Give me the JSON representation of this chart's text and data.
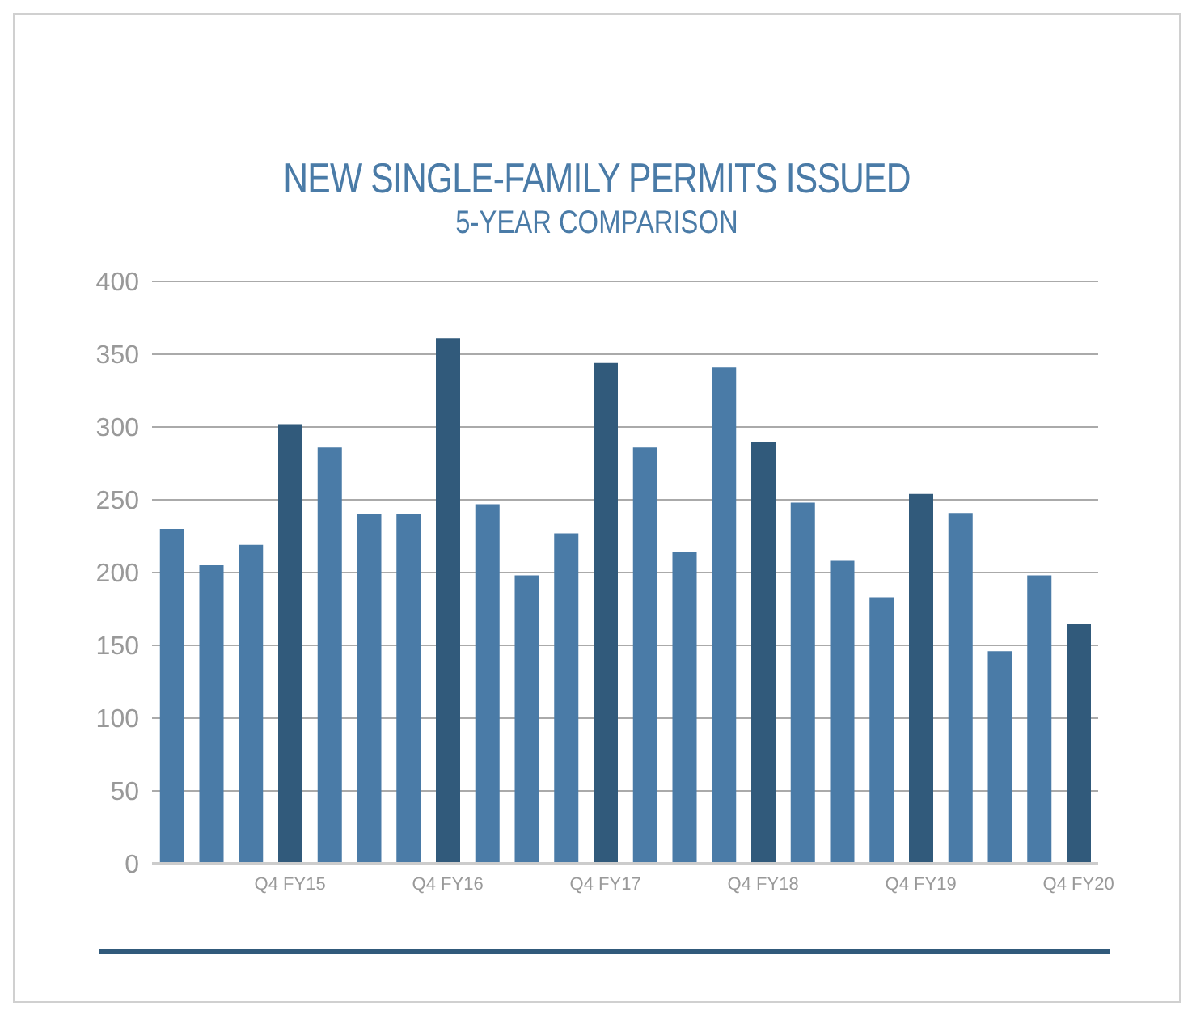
{
  "chart_data": {
    "type": "bar",
    "title": "NEW SINGLE-FAMILY PERMITS ISSUED",
    "subtitle": "5-YEAR COMPARISON",
    "categories": [
      null,
      null,
      null,
      "Q4 FY15",
      null,
      null,
      null,
      "Q4 FY16",
      null,
      null,
      null,
      "Q4 FY17",
      null,
      null,
      null,
      "Q4 FY18",
      null,
      null,
      null,
      "Q4 FY19",
      null,
      null,
      null,
      "Q4 FY20"
    ],
    "values": [
      230,
      205,
      219,
      302,
      286,
      240,
      240,
      361,
      247,
      198,
      227,
      344,
      286,
      214,
      341,
      290,
      248,
      208,
      183,
      254,
      241,
      146,
      198,
      165
    ],
    "colors": [
      "#4a7ba7",
      "#4a7ba7",
      "#4a7ba7",
      "#315a7b",
      "#4a7ba7",
      "#4a7ba7",
      "#4a7ba7",
      "#315a7b",
      "#4a7ba7",
      "#4a7ba7",
      "#4a7ba7",
      "#315a7b",
      "#4a7ba7",
      "#4a7ba7",
      "#4a7ba7",
      "#315a7b",
      "#4a7ba7",
      "#4a7ba7",
      "#4a7ba7",
      "#315a7b",
      "#4a7ba7",
      "#4a7ba7",
      "#4a7ba7",
      "#315a7b"
    ],
    "ylim": [
      0,
      400
    ],
    "yticks": [
      0,
      50,
      100,
      150,
      200,
      250,
      300,
      350,
      400
    ],
    "grid": "y"
  }
}
